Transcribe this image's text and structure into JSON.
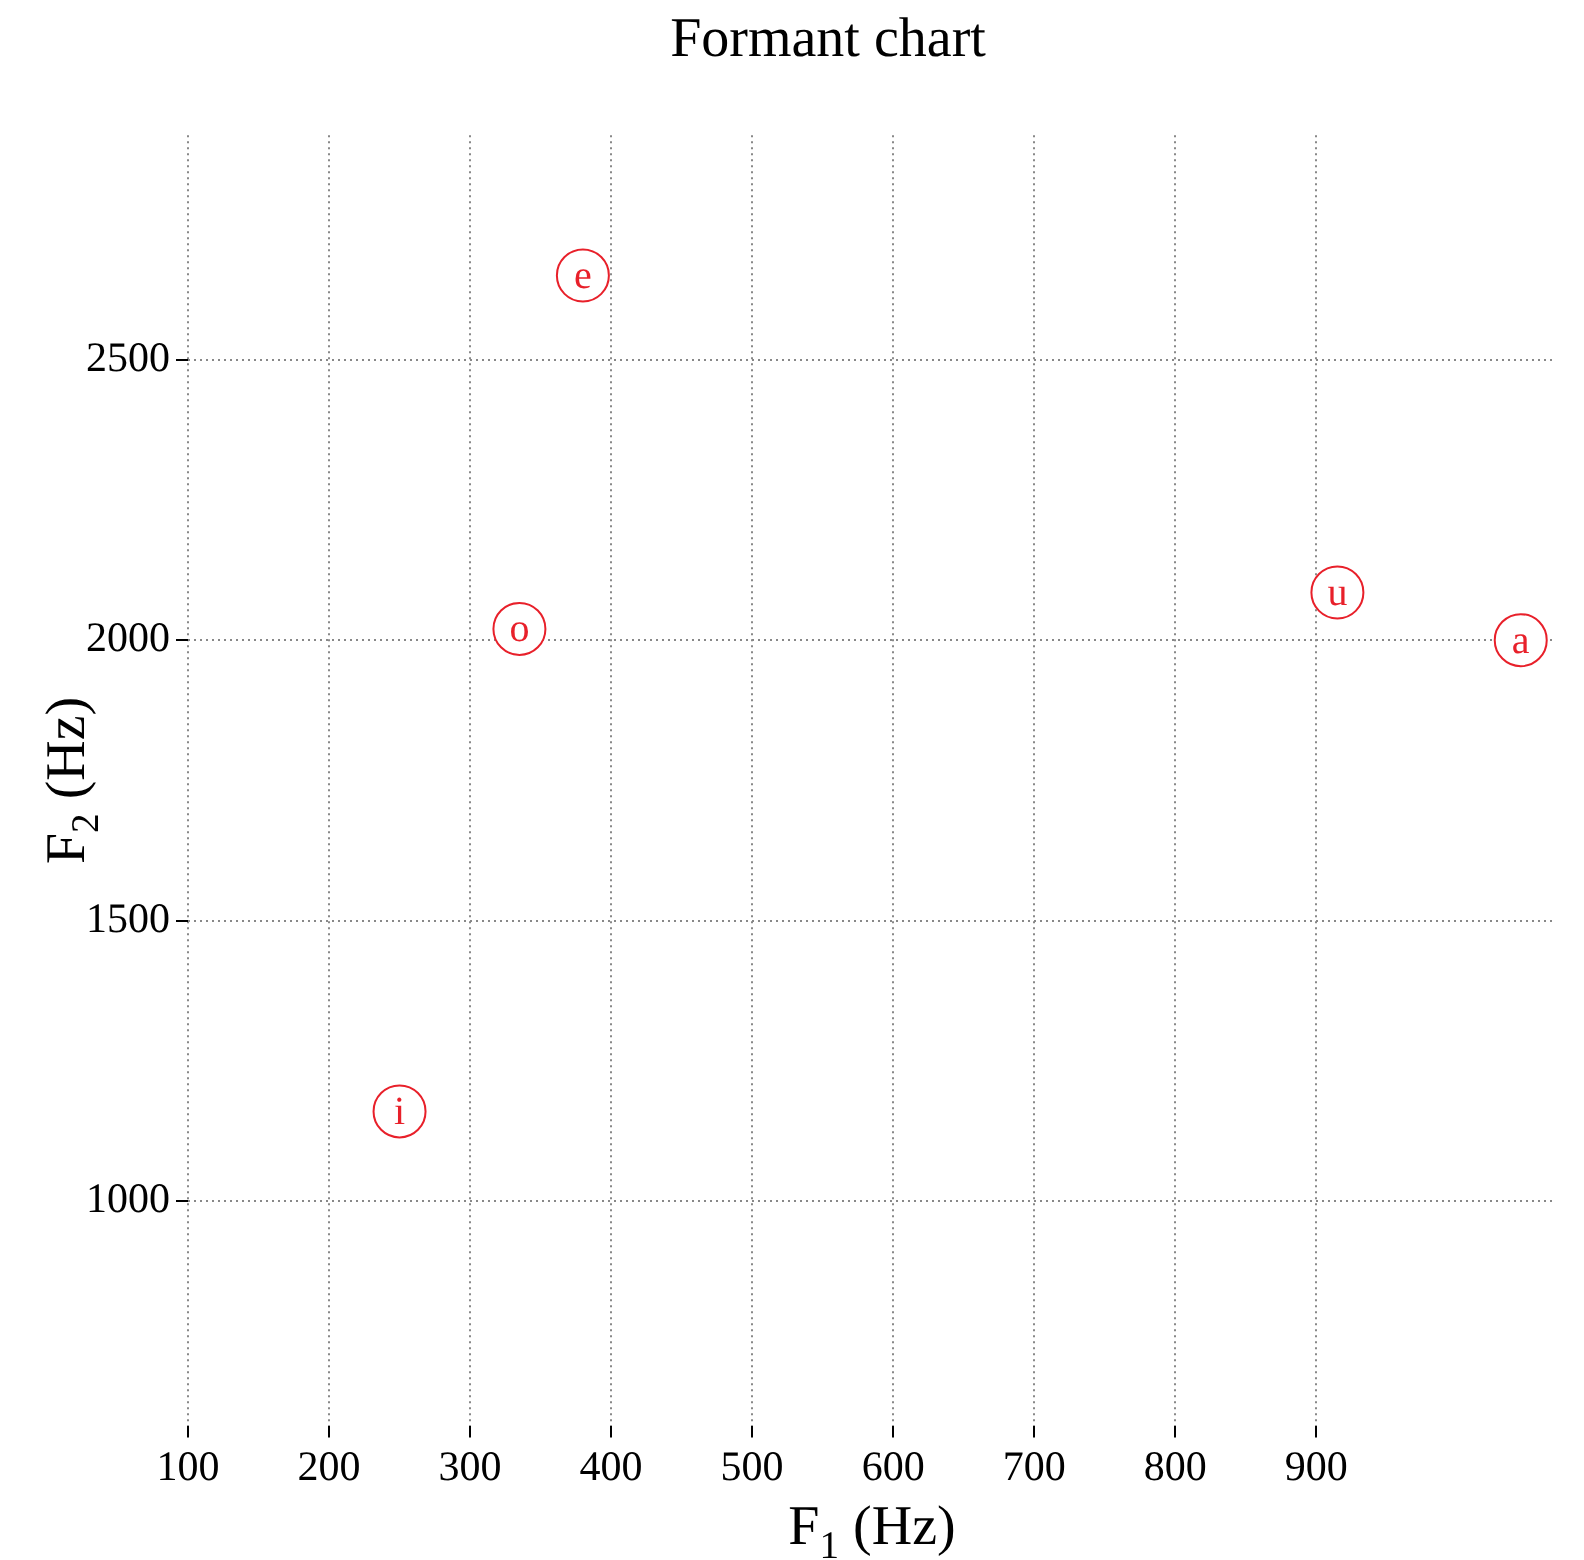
{
  "chart_data": {
    "type": "scatter",
    "title": "Formant chart",
    "xlabel": "F$_{1}$ (Hz)",
    "ylabel": "F$_{2}$ (Hz)",
    "x": [
      380,
      335,
      915,
      1045,
      250
    ],
    "series": [
      {
        "color": "#e8202a",
        "values": [
          2650,
          2020,
          2085,
          2000,
          1160
        ]
      }
    ],
    "annotations": [
      {
        "text": "e",
        "x": 380,
        "y": 2650
      },
      {
        "text": "o",
        "x": 335,
        "y": 2020
      },
      {
        "text": "u",
        "x": 915,
        "y": 2085
      },
      {
        "text": "a",
        "x": 1045,
        "y": 2000
      },
      {
        "text": "i",
        "x": 250,
        "y": 1160
      }
    ],
    "xlim": [
      100,
      1070
    ],
    "xticks": [
      100,
      200,
      300,
      400,
      500,
      600,
      700,
      800,
      900
    ],
    "ylim": [
      600,
      2900
    ],
    "yticks": [
      1000,
      1500,
      2000,
      2500
    ],
    "grid": true,
    "marker": "circle"
  }
}
